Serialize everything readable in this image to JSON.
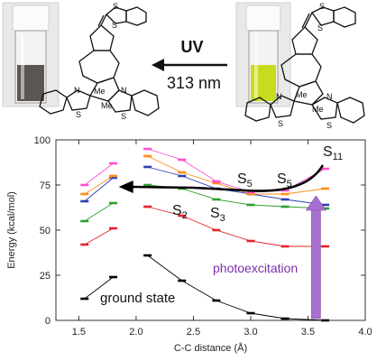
{
  "top": {
    "uv_label": "UV",
    "wavelength_label": "313 nm",
    "vial_left_color": "#5c5650",
    "vial_right_color": "#c8dc1e",
    "mol_atoms": {
      "S": "S",
      "N": "N",
      "Me": "Me"
    }
  },
  "chart_data": {
    "type": "line",
    "xlabel": "C-C distance (Å)",
    "ylabel": "Energy (kcal/mol)",
    "xlim": [
      1.3,
      4.0
    ],
    "ylim": [
      0,
      100
    ],
    "xticks": [
      "1.5",
      "2.0",
      "2.5",
      "3.0",
      "3.5",
      "4.0"
    ],
    "yticks": [
      "0",
      "25",
      "50",
      "75",
      "100"
    ],
    "x_groups": [
      [
        1.55,
        1.8
      ],
      [
        2.1,
        2.4,
        2.7,
        3.0,
        3.3,
        3.65
      ]
    ],
    "series": [
      {
        "color": "#000000",
        "values": [
          [
            12,
            24
          ],
          [
            36,
            22,
            11,
            4,
            1,
            0
          ]
        ]
      },
      {
        "color": "#e3242b",
        "values": [
          [
            42,
            51
          ],
          [
            63,
            58,
            50,
            44,
            41,
            41
          ]
        ]
      },
      {
        "color": "#2ca02c",
        "values": [
          [
            55,
            65
          ],
          [
            75,
            73,
            67,
            64,
            63,
            62
          ]
        ]
      },
      {
        "color": "#2b3fb3",
        "values": [
          [
            66,
            79
          ],
          [
            85,
            80,
            73,
            70,
            67,
            64
          ]
        ]
      },
      {
        "color": "#ff8c1a",
        "values": [
          [
            70,
            80
          ],
          [
            91,
            82,
            76,
            70,
            70,
            73
          ]
        ]
      },
      {
        "color": "#ff4fd0",
        "values": [
          [
            75,
            87
          ],
          [
            95,
            89,
            77,
            71,
            72,
            84
          ]
        ]
      }
    ],
    "annotations": {
      "ground_state": "ground state",
      "photoexcitation": "photoexcitation",
      "states": [
        {
          "base": "S",
          "sub": "2"
        },
        {
          "base": "S",
          "sub": "3"
        },
        {
          "base": "S",
          "sub": "5"
        },
        {
          "base": "S",
          "sub": "5"
        },
        {
          "base": "S",
          "sub": "11"
        }
      ]
    },
    "arrow_colors": {
      "path": "#000000",
      "excitation": "#a76fd0"
    },
    "grid": false,
    "legend": "none"
  }
}
